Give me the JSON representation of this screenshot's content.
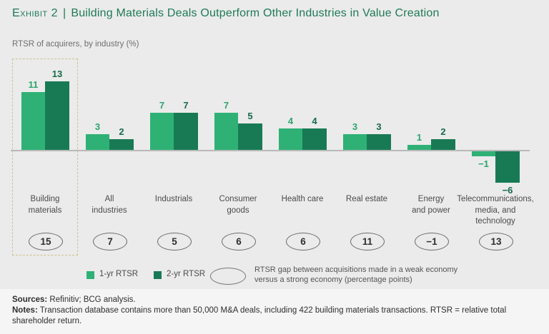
{
  "title": {
    "exhibit_label": "Exhibit 2",
    "separator": "|",
    "headline": "Building Materials Deals Outperform Other Industries in Value Creation"
  },
  "subtitle": "RTSR of acquirers, by industry (%)",
  "chart_data": {
    "type": "bar",
    "title": "RTSR of acquirers, by industry (%)",
    "categories": [
      "Building\nmaterials",
      "All\nindustries",
      "Industrials",
      "Consumer\ngoods",
      "Health care",
      "Real estate",
      "Energy\nand power",
      "Telecommunications,\nmedia, and\ntechnology"
    ],
    "series": [
      {
        "name": "1-yr RTSR",
        "color": "#2fb176",
        "values": [
          11,
          3,
          7,
          7,
          4,
          3,
          1,
          -1
        ]
      },
      {
        "name": "2-yr RTSR",
        "color": "#187a55",
        "values": [
          13,
          2,
          7,
          5,
          4,
          3,
          2,
          -6
        ]
      }
    ],
    "gap_badge_values": [
      15,
      7,
      5,
      6,
      6,
      11,
      -1,
      13
    ],
    "highlighted_category": "Building materials",
    "ylim": [
      -8,
      14
    ],
    "grid": false,
    "legend_position": "bottom",
    "data_labels": true
  },
  "legend": {
    "items": [
      {
        "label": "1-yr RTSR",
        "color": "#2fb176"
      },
      {
        "label": "2-yr RTSR",
        "color": "#187a55"
      }
    ],
    "gap_note": "RTSR gap between acquisitions made in a weak economy\nversus a strong economy (percentage points)"
  },
  "footer": {
    "sources_label": "Sources:",
    "sources_text": " Refinitiv; BCG analysis.",
    "notes_label": "Notes:",
    "notes_text": " Transaction database contains more than 50,000 M&A deals, including 422 building materials transactions. RTSR = relative total shareholder return."
  },
  "colors": {
    "background": "#ebebeb",
    "footer_background": "#f5f5f5",
    "title_green": "#1e7a58",
    "bar_light_green": "#2fb176",
    "bar_dark_green": "#187a55",
    "axis_gray": "#b9b9b9",
    "highlight_dash": "#ccc48e"
  }
}
